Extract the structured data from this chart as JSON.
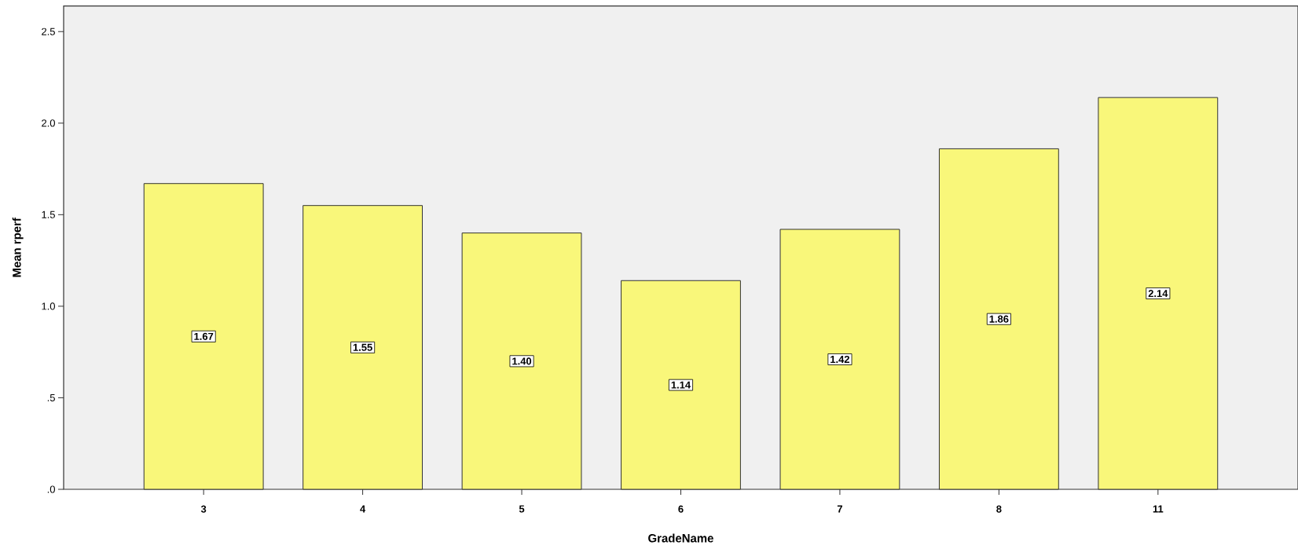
{
  "chart_data": {
    "type": "bar",
    "xlabel": "GradeName",
    "ylabel": "Mean rperf",
    "categories": [
      "3",
      "4",
      "5",
      "6",
      "7",
      "8",
      "11"
    ],
    "values": [
      1.67,
      1.55,
      1.4,
      1.14,
      1.42,
      1.86,
      2.14
    ],
    "value_labels": [
      "1.67",
      "1.55",
      "1.40",
      "1.14",
      "1.42",
      "1.86",
      "2.14"
    ],
    "color": "#f9f77a",
    "ylim": [
      0,
      2.64
    ],
    "yticks": [
      {
        "value": 0,
        "label": ".0"
      },
      {
        "value": 0.5,
        "label": ".5"
      },
      {
        "value": 1,
        "label": "1.0"
      },
      {
        "value": 1.5,
        "label": "1.5"
      },
      {
        "value": 2,
        "label": "2.0"
      },
      {
        "value": 2.5,
        "label": "2.5"
      }
    ]
  }
}
